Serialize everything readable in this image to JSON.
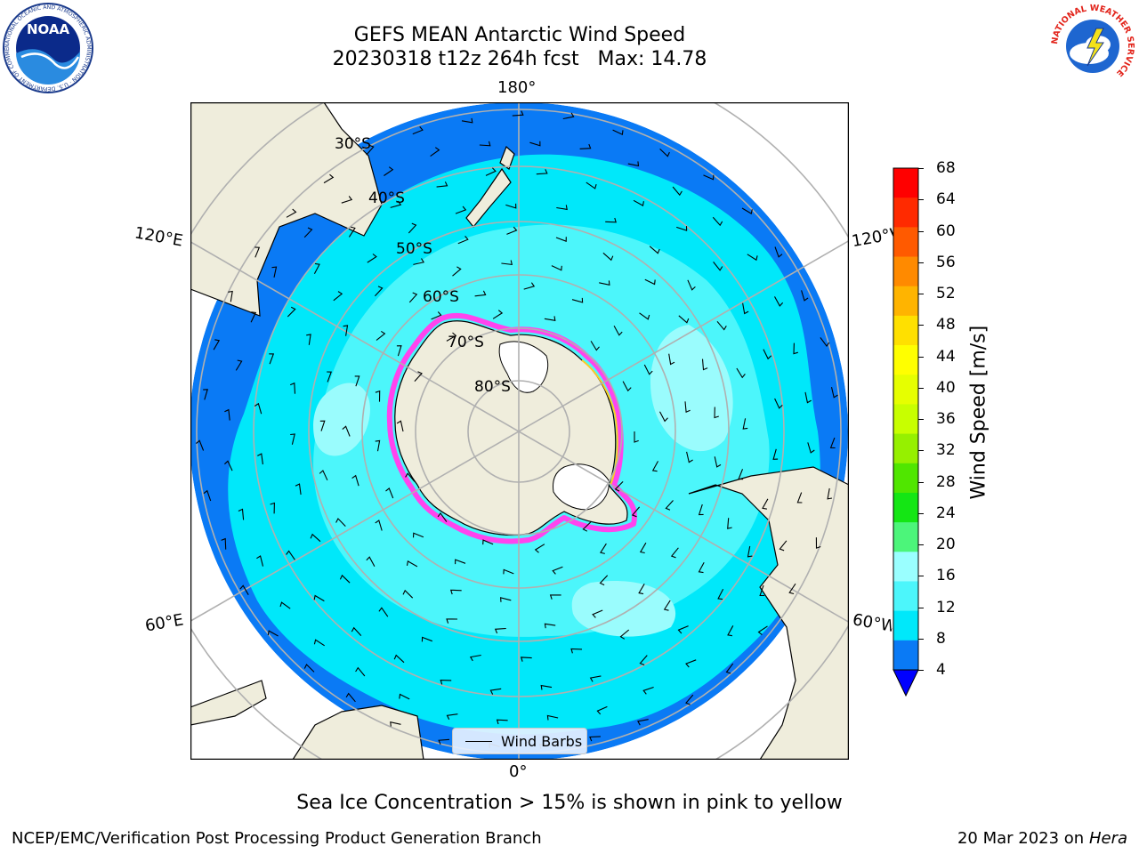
{
  "header": {
    "title_line1": "GEFS MEAN Antarctic Wind Speed",
    "title_line2": "20230318 t12z 264h fcst   Max: 14.78"
  },
  "map": {
    "projection": "south-polar-stereographic",
    "longitude_labels": {
      "top": "180°",
      "bottom": "0°",
      "upper_left": "120°E",
      "upper_right": "120°W",
      "lower_left": "60°E",
      "lower_right": "60°W"
    },
    "latitude_labels": [
      "30°S",
      "40°S",
      "50°S",
      "60°S",
      "70°S",
      "80°S"
    ],
    "colors": {
      "land": "#efeddc",
      "band_4_8": "#0a7af5",
      "band_8_12": "#00e8fa",
      "band_12_16": "#4cf6fb",
      "band_16_20": "#9afcfd",
      "ice_edge_pink": "#ff44ee",
      "ice_edge_yellow": "#ffcc22",
      "gridline": "#b0b0b0"
    }
  },
  "legend": {
    "wind_barbs_label": "Wind Barbs"
  },
  "colorbar": {
    "label": "Wind Speed [m/s]",
    "ticks": [
      "68",
      "64",
      "60",
      "56",
      "52",
      "48",
      "44",
      "40",
      "36",
      "32",
      "28",
      "24",
      "20",
      "16",
      "12",
      "8",
      "4"
    ],
    "colors_top_to_bottom": [
      "#ff0000",
      "#ff2a00",
      "#ff5a00",
      "#ff8a00",
      "#ffb400",
      "#ffe000",
      "#ffff00",
      "#e6ff00",
      "#c8ff00",
      "#96f000",
      "#50e600",
      "#14e614",
      "#4cf57a",
      "#9affff",
      "#4cf6fb",
      "#00e8fa",
      "#0a7af5"
    ],
    "extend_color": "#0000ff"
  },
  "footer": {
    "note": "Sea Ice Concentration > 15% is shown in pink to yellow",
    "credit_left": "NCEP/EMC/Verification Post Processing Product Generation Branch",
    "credit_date": "20 Mar 2023 on",
    "credit_machine": "Hera"
  },
  "logos": {
    "noaa_text": "NOAA",
    "noaa_ring": "NATIONAL OCEANIC AND ATMOSPHERIC ADMINISTRATION · U.S. DEPARTMENT OF COMMERCE",
    "nws_ring": "NATIONAL WEATHER SERVICE"
  }
}
